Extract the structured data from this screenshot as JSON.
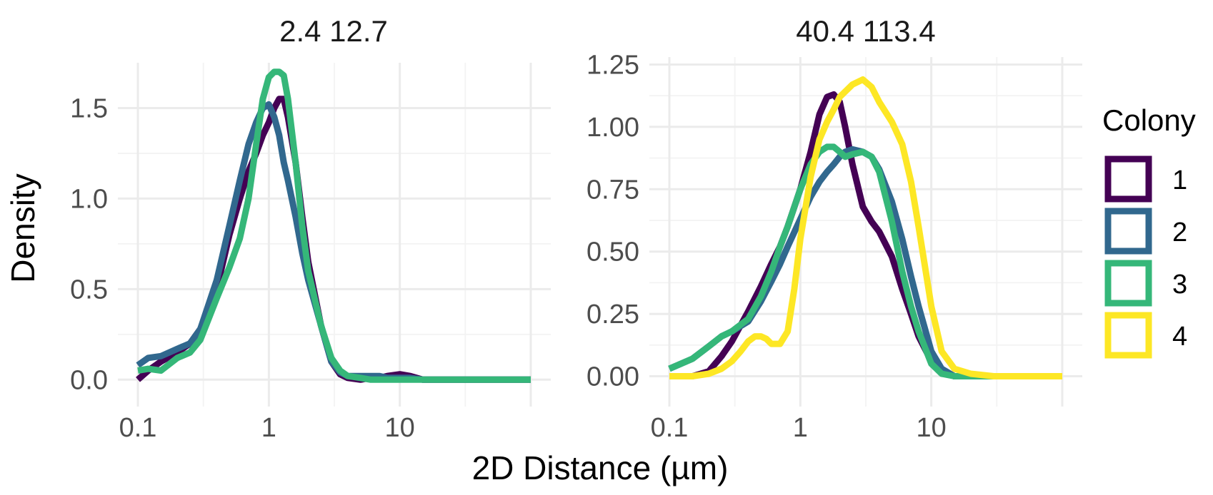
{
  "chart_data": {
    "type": "line",
    "xlabel": "2D Distance (µm)",
    "ylabel": "Density",
    "x_scale": "log10",
    "legend": {
      "title": "Colony",
      "position": "right",
      "entries": [
        {
          "name": "1",
          "color": "#440154"
        },
        {
          "name": "2",
          "color": "#31688E"
        },
        {
          "name": "3",
          "color": "#35B779"
        },
        {
          "name": "4",
          "color": "#FDE725"
        }
      ]
    },
    "panels": [
      {
        "title": "2.4 12.7",
        "xlim": [
          0.1,
          100
        ],
        "ylim": [
          -0.05,
          1.75
        ],
        "x_ticks": [
          0.1,
          1,
          10
        ],
        "x_tick_labels": [
          "0.1",
          "1",
          "10"
        ],
        "y_ticks": [
          0,
          0.5,
          1,
          1.5
        ],
        "y_tick_labels": [
          "0.0",
          "0.5",
          "1.0",
          "1.5"
        ],
        "series": [
          {
            "name": "1",
            "color": "#440154",
            "x": [
              0.1,
              0.12,
              0.15,
              0.2,
              0.25,
              0.3,
              0.4,
              0.5,
              0.6,
              0.7,
              0.8,
              0.9,
              1.0,
              1.1,
              1.2,
              1.3,
              1.4,
              1.6,
              1.8,
              2.0,
              2.5,
              3.0,
              3.5,
              4.0,
              5.0,
              6.0,
              7.0,
              8.0,
              10,
              12,
              15,
              20,
              30,
              50,
              100
            ],
            "y": [
              0.0,
              0.05,
              0.1,
              0.15,
              0.2,
              0.28,
              0.5,
              0.8,
              1.0,
              1.15,
              1.25,
              1.35,
              1.42,
              1.5,
              1.55,
              1.55,
              1.45,
              1.2,
              0.9,
              0.65,
              0.3,
              0.1,
              0.03,
              0.01,
              0.0,
              0.01,
              0.01,
              0.02,
              0.03,
              0.02,
              0.0,
              0.0,
              0.0,
              0.0,
              0.0
            ]
          },
          {
            "name": "2",
            "color": "#31688E",
            "x": [
              0.1,
              0.12,
              0.15,
              0.2,
              0.25,
              0.3,
              0.4,
              0.5,
              0.6,
              0.7,
              0.8,
              0.9,
              1.0,
              1.1,
              1.2,
              1.3,
              1.4,
              1.6,
              1.8,
              2.0,
              2.5,
              3.0,
              3.5,
              4.0,
              5.0,
              6.0,
              7.0,
              8.0,
              10,
              12,
              15,
              20,
              30,
              50,
              100
            ],
            "y": [
              0.08,
              0.12,
              0.13,
              0.17,
              0.2,
              0.28,
              0.55,
              0.85,
              1.1,
              1.3,
              1.42,
              1.5,
              1.52,
              1.45,
              1.35,
              1.2,
              1.1,
              0.9,
              0.7,
              0.55,
              0.3,
              0.1,
              0.04,
              0.02,
              0.02,
              0.02,
              0.02,
              0.01,
              0.01,
              0.01,
              0.0,
              0.0,
              0.0,
              0.0,
              0.0
            ]
          },
          {
            "name": "3",
            "color": "#35B779",
            "x": [
              0.1,
              0.12,
              0.15,
              0.2,
              0.25,
              0.3,
              0.4,
              0.5,
              0.6,
              0.7,
              0.8,
              0.9,
              1.0,
              1.1,
              1.2,
              1.3,
              1.4,
              1.6,
              1.8,
              2.0,
              2.5,
              3.0,
              3.5,
              4.0,
              5.0,
              6.0,
              7.0,
              8.0,
              10,
              12,
              15,
              20,
              30,
              50,
              100
            ],
            "y": [
              0.05,
              0.06,
              0.05,
              0.12,
              0.15,
              0.22,
              0.45,
              0.62,
              0.78,
              1.0,
              1.3,
              1.55,
              1.67,
              1.7,
              1.7,
              1.68,
              1.55,
              1.2,
              0.85,
              0.6,
              0.3,
              0.12,
              0.05,
              0.02,
              0.01,
              0.0,
              0.0,
              0.0,
              0.0,
              0.0,
              0.0,
              0.0,
              0.0,
              0.0,
              0.0
            ]
          }
        ]
      },
      {
        "title": "40.4 113.4",
        "xlim": [
          0.1,
          100
        ],
        "ylim": [
          -0.05,
          1.28
        ],
        "x_ticks": [
          0.1,
          1,
          10
        ],
        "x_tick_labels": [
          "0.1",
          "1",
          "10"
        ],
        "y_ticks": [
          0,
          0.25,
          0.5,
          0.75,
          1,
          1.25
        ],
        "y_tick_labels": [
          "0.00",
          "0.25",
          "0.50",
          "0.75",
          "1.00",
          "1.25"
        ],
        "series": [
          {
            "name": "1",
            "color": "#440154",
            "x": [
              0.1,
              0.15,
              0.2,
              0.25,
              0.3,
              0.4,
              0.5,
              0.6,
              0.7,
              0.8,
              1.0,
              1.2,
              1.4,
              1.6,
              1.8,
              2.0,
              2.2,
              2.5,
              3.0,
              3.5,
              4.0,
              5.0,
              6.0,
              7.0,
              8.0,
              10,
              12,
              15,
              20,
              30,
              50,
              100
            ],
            "y": [
              0.0,
              0.0,
              0.02,
              0.08,
              0.14,
              0.26,
              0.36,
              0.45,
              0.52,
              0.6,
              0.75,
              0.9,
              1.05,
              1.12,
              1.13,
              1.1,
              1.0,
              0.85,
              0.68,
              0.62,
              0.58,
              0.48,
              0.35,
              0.25,
              0.16,
              0.06,
              0.02,
              0.0,
              0.0,
              0.0,
              0.0,
              0.0
            ]
          },
          {
            "name": "2",
            "color": "#31688E",
            "x": [
              0.1,
              0.15,
              0.2,
              0.25,
              0.3,
              0.4,
              0.5,
              0.6,
              0.7,
              0.8,
              1.0,
              1.2,
              1.4,
              1.6,
              1.8,
              2.0,
              2.2,
              2.5,
              3.0,
              3.5,
              4.0,
              5.0,
              6.0,
              7.0,
              8.0,
              10,
              12,
              15,
              20,
              30,
              50,
              100
            ],
            "y": [
              0.03,
              0.07,
              0.12,
              0.16,
              0.18,
              0.22,
              0.3,
              0.38,
              0.45,
              0.52,
              0.63,
              0.72,
              0.78,
              0.82,
              0.85,
              0.88,
              0.9,
              0.91,
              0.9,
              0.88,
              0.83,
              0.7,
              0.55,
              0.4,
              0.28,
              0.1,
              0.03,
              0.0,
              0.0,
              0.0,
              0.0,
              0.0
            ]
          },
          {
            "name": "3",
            "color": "#35B779",
            "x": [
              0.1,
              0.15,
              0.2,
              0.25,
              0.3,
              0.4,
              0.5,
              0.6,
              0.7,
              0.8,
              1.0,
              1.2,
              1.4,
              1.6,
              1.8,
              2.0,
              2.2,
              2.5,
              3.0,
              3.5,
              4.0,
              5.0,
              6.0,
              7.0,
              8.0,
              10,
              12,
              15,
              20,
              30,
              50,
              100
            ],
            "y": [
              0.03,
              0.07,
              0.12,
              0.16,
              0.18,
              0.23,
              0.32,
              0.42,
              0.52,
              0.6,
              0.75,
              0.85,
              0.9,
              0.92,
              0.92,
              0.9,
              0.88,
              0.89,
              0.9,
              0.88,
              0.82,
              0.62,
              0.42,
              0.28,
              0.18,
              0.05,
              0.01,
              0.0,
              0.0,
              0.0,
              0.0,
              0.0
            ]
          },
          {
            "name": "4",
            "color": "#FDE725",
            "x": [
              0.1,
              0.15,
              0.2,
              0.25,
              0.3,
              0.35,
              0.4,
              0.45,
              0.5,
              0.55,
              0.6,
              0.7,
              0.8,
              0.9,
              1.0,
              1.2,
              1.4,
              1.6,
              1.8,
              2.0,
              2.5,
              3.0,
              3.5,
              4.0,
              5.0,
              6.0,
              7.0,
              8.0,
              10,
              12,
              15,
              20,
              30,
              50,
              100
            ],
            "y": [
              0.0,
              0.0,
              0.01,
              0.03,
              0.06,
              0.1,
              0.14,
              0.16,
              0.16,
              0.15,
              0.13,
              0.13,
              0.18,
              0.35,
              0.55,
              0.8,
              0.95,
              1.02,
              1.07,
              1.12,
              1.17,
              1.19,
              1.16,
              1.1,
              1.02,
              0.93,
              0.78,
              0.6,
              0.28,
              0.1,
              0.03,
              0.01,
              0.0,
              0.0,
              0.0
            ]
          }
        ]
      }
    ]
  }
}
